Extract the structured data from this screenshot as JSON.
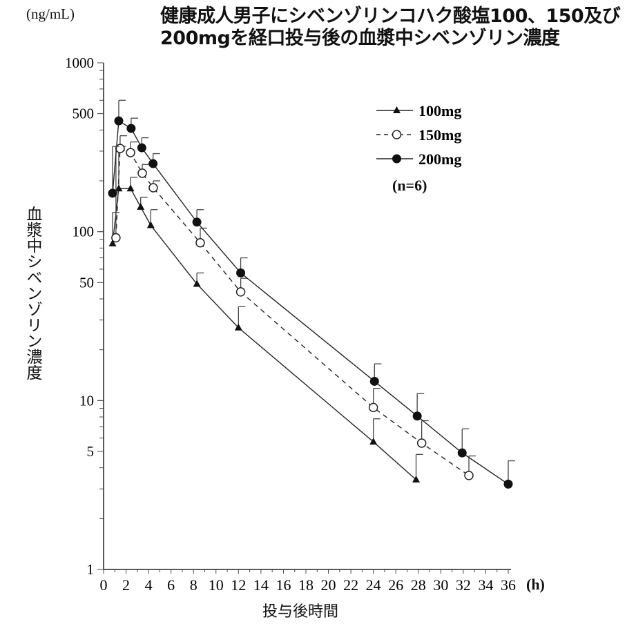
{
  "chart_data": {
    "type": "line",
    "title_line1": "健康成人男子にシベンゾリンコハク酸塩100、150及び",
    "title_line2": "200mgを経口投与後の血漿中シベンゾリン濃度",
    "y_unit": "(ng/mL)",
    "ylabel": "血漿中シベンゾリン濃度",
    "xlabel": "投与後時間",
    "x_unit": "(h)",
    "note": "(n=6)",
    "y_scale": "log",
    "ylim": [
      1,
      1000
    ],
    "xlim": [
      0,
      36
    ],
    "y_ticks": [
      {
        "v": 1,
        "label": "1"
      },
      {
        "v": 5,
        "label": "5"
      },
      {
        "v": 10,
        "label": "10"
      },
      {
        "v": 50,
        "label": "50"
      },
      {
        "v": 100,
        "label": "100"
      },
      {
        "v": 500,
        "label": "500"
      },
      {
        "v": 1000,
        "label": "1000"
      }
    ],
    "x_ticks": [
      "0",
      "2",
      "4",
      "6",
      "8",
      "10",
      "12",
      "14",
      "16",
      "18",
      "20",
      "22",
      "24",
      "26",
      "28",
      "30",
      "32",
      "34",
      "36"
    ],
    "legend_position": "top-right",
    "series": [
      {
        "name": "100mg",
        "marker": "triangle",
        "dash": false,
        "x": [
          0.8,
          1.35,
          2.4,
          3.3,
          4.2,
          8.3,
          12.0,
          24.0,
          27.8
        ],
        "y": [
          85,
          180,
          180,
          140,
          109,
          49,
          27,
          5.7,
          3.4
        ],
        "sd_upper": [
          130,
          320,
          210,
          160,
          135,
          57,
          36,
          7.8,
          4.8
        ]
      },
      {
        "name": "150mg",
        "marker": "open-circle",
        "dash": true,
        "x": [
          1.1,
          1.47,
          2.4,
          3.44,
          4.42,
          8.6,
          12.2,
          24.0,
          28.3,
          32.5
        ],
        "y": [
          92,
          311,
          294,
          222,
          182,
          86,
          44,
          9.1,
          5.6,
          3.6
        ],
        "sd_upper": [
          320,
          370,
          340,
          250,
          200,
          105,
          53,
          11.8,
          7.6,
          4.7
        ]
      },
      {
        "name": "200mg",
        "marker": "filled-circle",
        "dash": false,
        "x": [
          0.8,
          1.35,
          2.45,
          3.4,
          4.4,
          8.3,
          12.2,
          24.1,
          27.9,
          31.9,
          36.0
        ],
        "y": [
          169,
          453,
          409,
          314,
          253,
          114,
          57,
          13,
          8.1,
          4.9,
          3.2
        ],
        "sd_upper": [
          320,
          600,
          470,
          360,
          290,
          135,
          70,
          16.5,
          11,
          6.8,
          4.4
        ]
      }
    ]
  }
}
